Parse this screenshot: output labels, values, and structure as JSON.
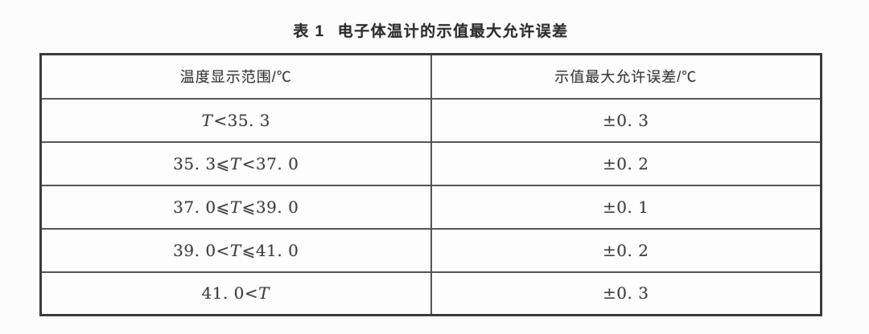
{
  "title": {
    "number": "表 1",
    "text": "电子体温计的示值最大允许误差"
  },
  "table": {
    "headers": [
      {
        "label": "温度显示范围/℃"
      },
      {
        "label": "示值最大允许误差/℃"
      }
    ],
    "rows": [
      {
        "range": "T<35. 3",
        "error": "±0. 3"
      },
      {
        "range": "35. 3⩽T<37. 0",
        "error": "±0. 2"
      },
      {
        "range": "37. 0⩽T⩽39. 0",
        "error": "±0. 1"
      },
      {
        "range": "39. 0<T⩽41. 0",
        "error": "±0. 2"
      },
      {
        "range": "41. 0<T",
        "error": "±0. 3"
      }
    ]
  },
  "colors": {
    "background": "#fcfcfc",
    "border_outer": "#3b3b3b",
    "border_inner": "#555555",
    "text": "#3d3d3d"
  }
}
